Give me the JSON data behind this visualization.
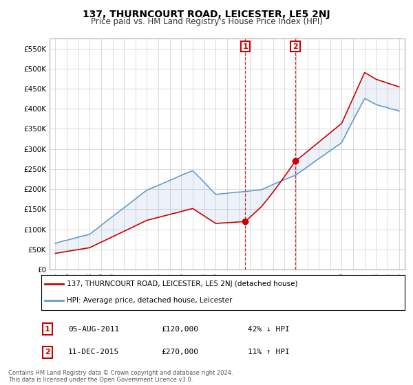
{
  "title": "137, THURNCOURT ROAD, LEICESTER, LE5 2NJ",
  "subtitle": "Price paid vs. HM Land Registry's House Price Index (HPI)",
  "ylim": [
    0,
    575000
  ],
  "yticks": [
    0,
    50000,
    100000,
    150000,
    200000,
    250000,
    300000,
    350000,
    400000,
    450000,
    500000,
    550000
  ],
  "ytick_labels": [
    "£0",
    "£50K",
    "£100K",
    "£150K",
    "£200K",
    "£250K",
    "£300K",
    "£350K",
    "£400K",
    "£450K",
    "£500K",
    "£550K"
  ],
  "xlim_start": 1994.5,
  "xlim_end": 2025.5,
  "transaction1_x": 2011.59,
  "transaction1_y": 120000,
  "transaction1_label": "05-AUG-2011",
  "transaction1_price": "£120,000",
  "transaction1_hpi": "42% ↓ HPI",
  "transaction2_x": 2015.94,
  "transaction2_y": 270000,
  "transaction2_label": "11-DEC-2015",
  "transaction2_price": "£270,000",
  "transaction2_hpi": "11% ↑ HPI",
  "red_color": "#cc0000",
  "blue_color": "#6699cc",
  "background_color": "#ffffff",
  "grid_color": "#cccccc",
  "legend_label_red": "137, THURNCOURT ROAD, LEICESTER, LE5 2NJ (detached house)",
  "legend_label_blue": "HPI: Average price, detached house, Leicester",
  "footer": "Contains HM Land Registry data © Crown copyright and database right 2024.\nThis data is licensed under the Open Government Licence v3.0."
}
